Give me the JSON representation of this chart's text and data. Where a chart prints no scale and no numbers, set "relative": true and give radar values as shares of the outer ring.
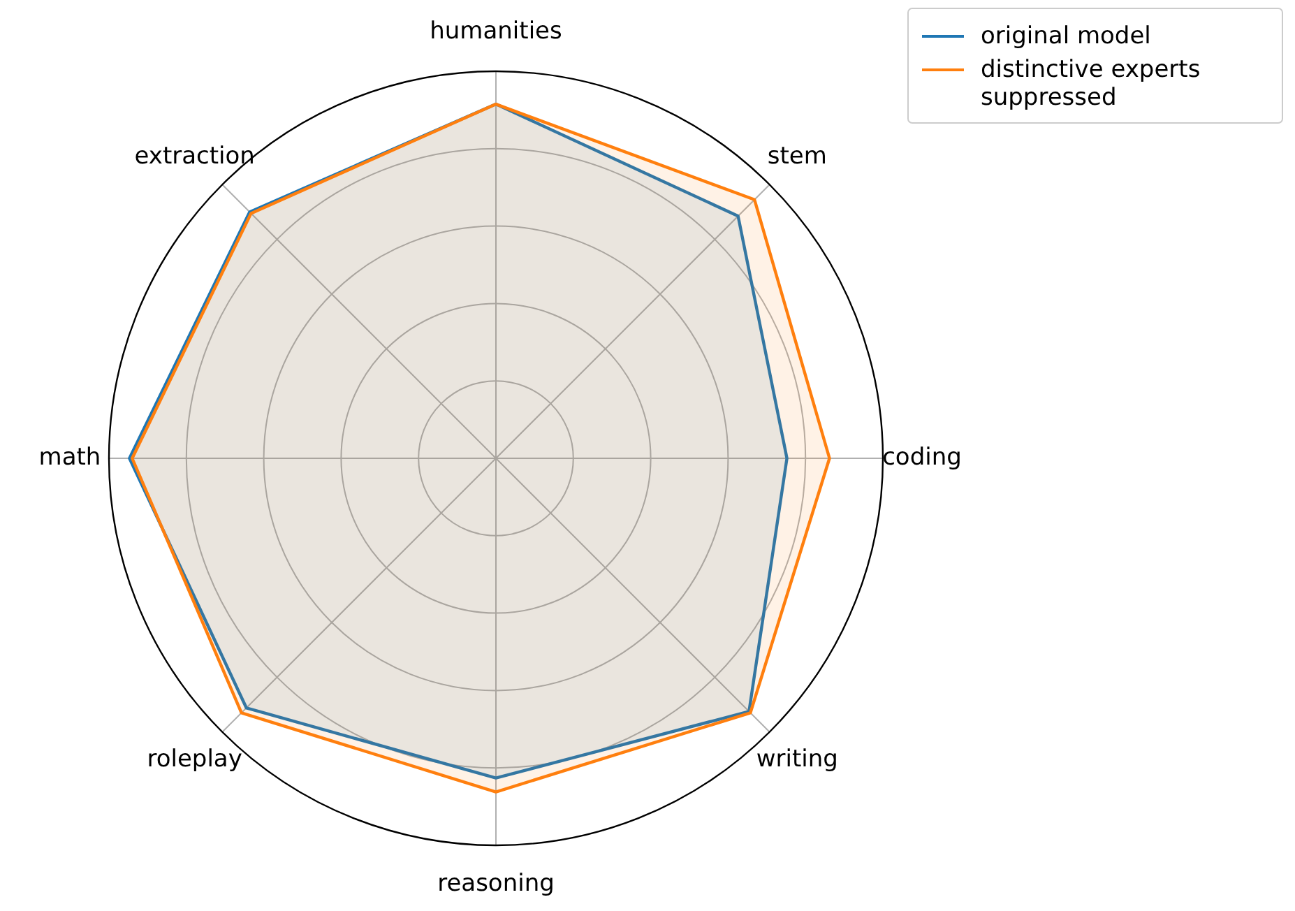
{
  "chart_data": {
    "type": "radar",
    "relative": true,
    "categories": [
      "humanities",
      "stem",
      "coding",
      "writing",
      "reasoning",
      "roleplay",
      "math",
      "extraction"
    ],
    "series": [
      {
        "name": "original model",
        "color": "#1f77b4",
        "values": [
          0.915,
          0.885,
          0.752,
          0.925,
          0.826,
          0.912,
          0.947,
          0.9
        ]
      },
      {
        "name": "distinctive experts suppressed",
        "color": "#ff7f0e",
        "values": [
          0.915,
          0.945,
          0.862,
          0.93,
          0.862,
          0.93,
          0.94,
          0.895
        ]
      }
    ],
    "grid": true,
    "legend": "top right"
  }
}
